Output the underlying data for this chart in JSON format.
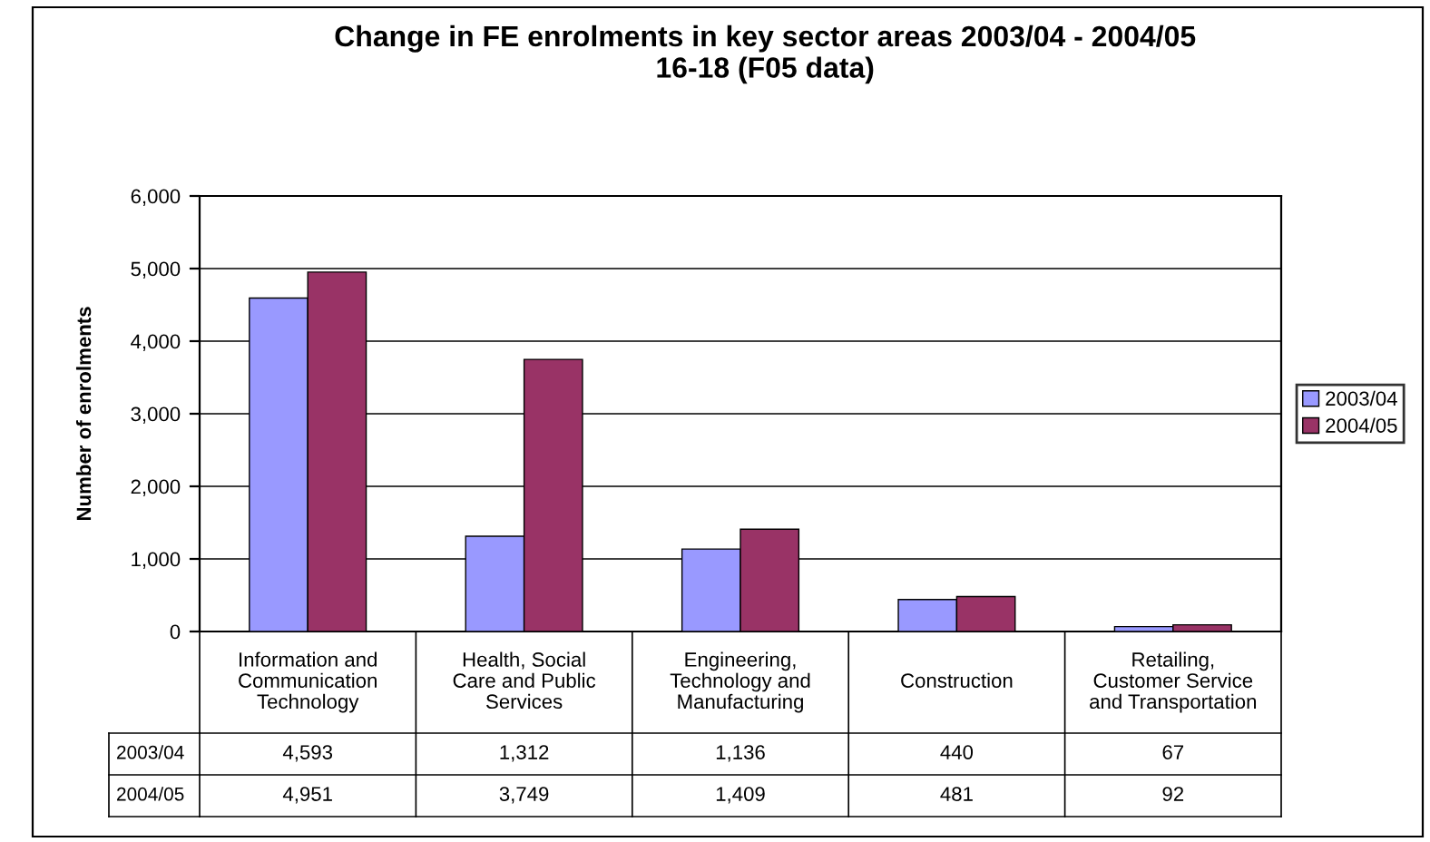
{
  "chart_data": {
    "type": "bar",
    "title": "Change in FE enrolments in key sector areas 2003/04 - 2004/05\n16-18 (F05 data)",
    "ylabel": "Number of enrolments",
    "categories": [
      "Information and\nCommunication\nTechnology",
      "Health, Social\nCare and Public\nServices",
      "Engineering,\nTechnology and\nManufacturing",
      "Construction",
      "Retailing,\nCustomer Service\nand Transportation"
    ],
    "series": [
      {
        "name": "2003/04",
        "color": "#9999ff",
        "values": [
          4593,
          1312,
          1136,
          440,
          67
        ],
        "value_labels": [
          "4,593",
          "1,312",
          "1,136",
          "440",
          "67"
        ]
      },
      {
        "name": "2004/05",
        "color": "#993366",
        "values": [
          4951,
          3749,
          1409,
          481,
          92
        ],
        "value_labels": [
          "4,951",
          "3,749",
          "1,409",
          "481",
          "92"
        ]
      }
    ],
    "ylim": [
      0,
      6000
    ],
    "yticks": [
      0,
      {
        "value": 1000,
        "label": "1,000"
      },
      {
        "value": 2000,
        "label": "2,000"
      },
      {
        "value": 3000,
        "label": "3,000"
      },
      {
        "value": 4000,
        "label": "4,000"
      },
      {
        "value": 5000,
        "label": "5,000"
      },
      {
        "value": 6000,
        "label": "6,000"
      }
    ],
    "grid": "y",
    "legend": "right"
  }
}
